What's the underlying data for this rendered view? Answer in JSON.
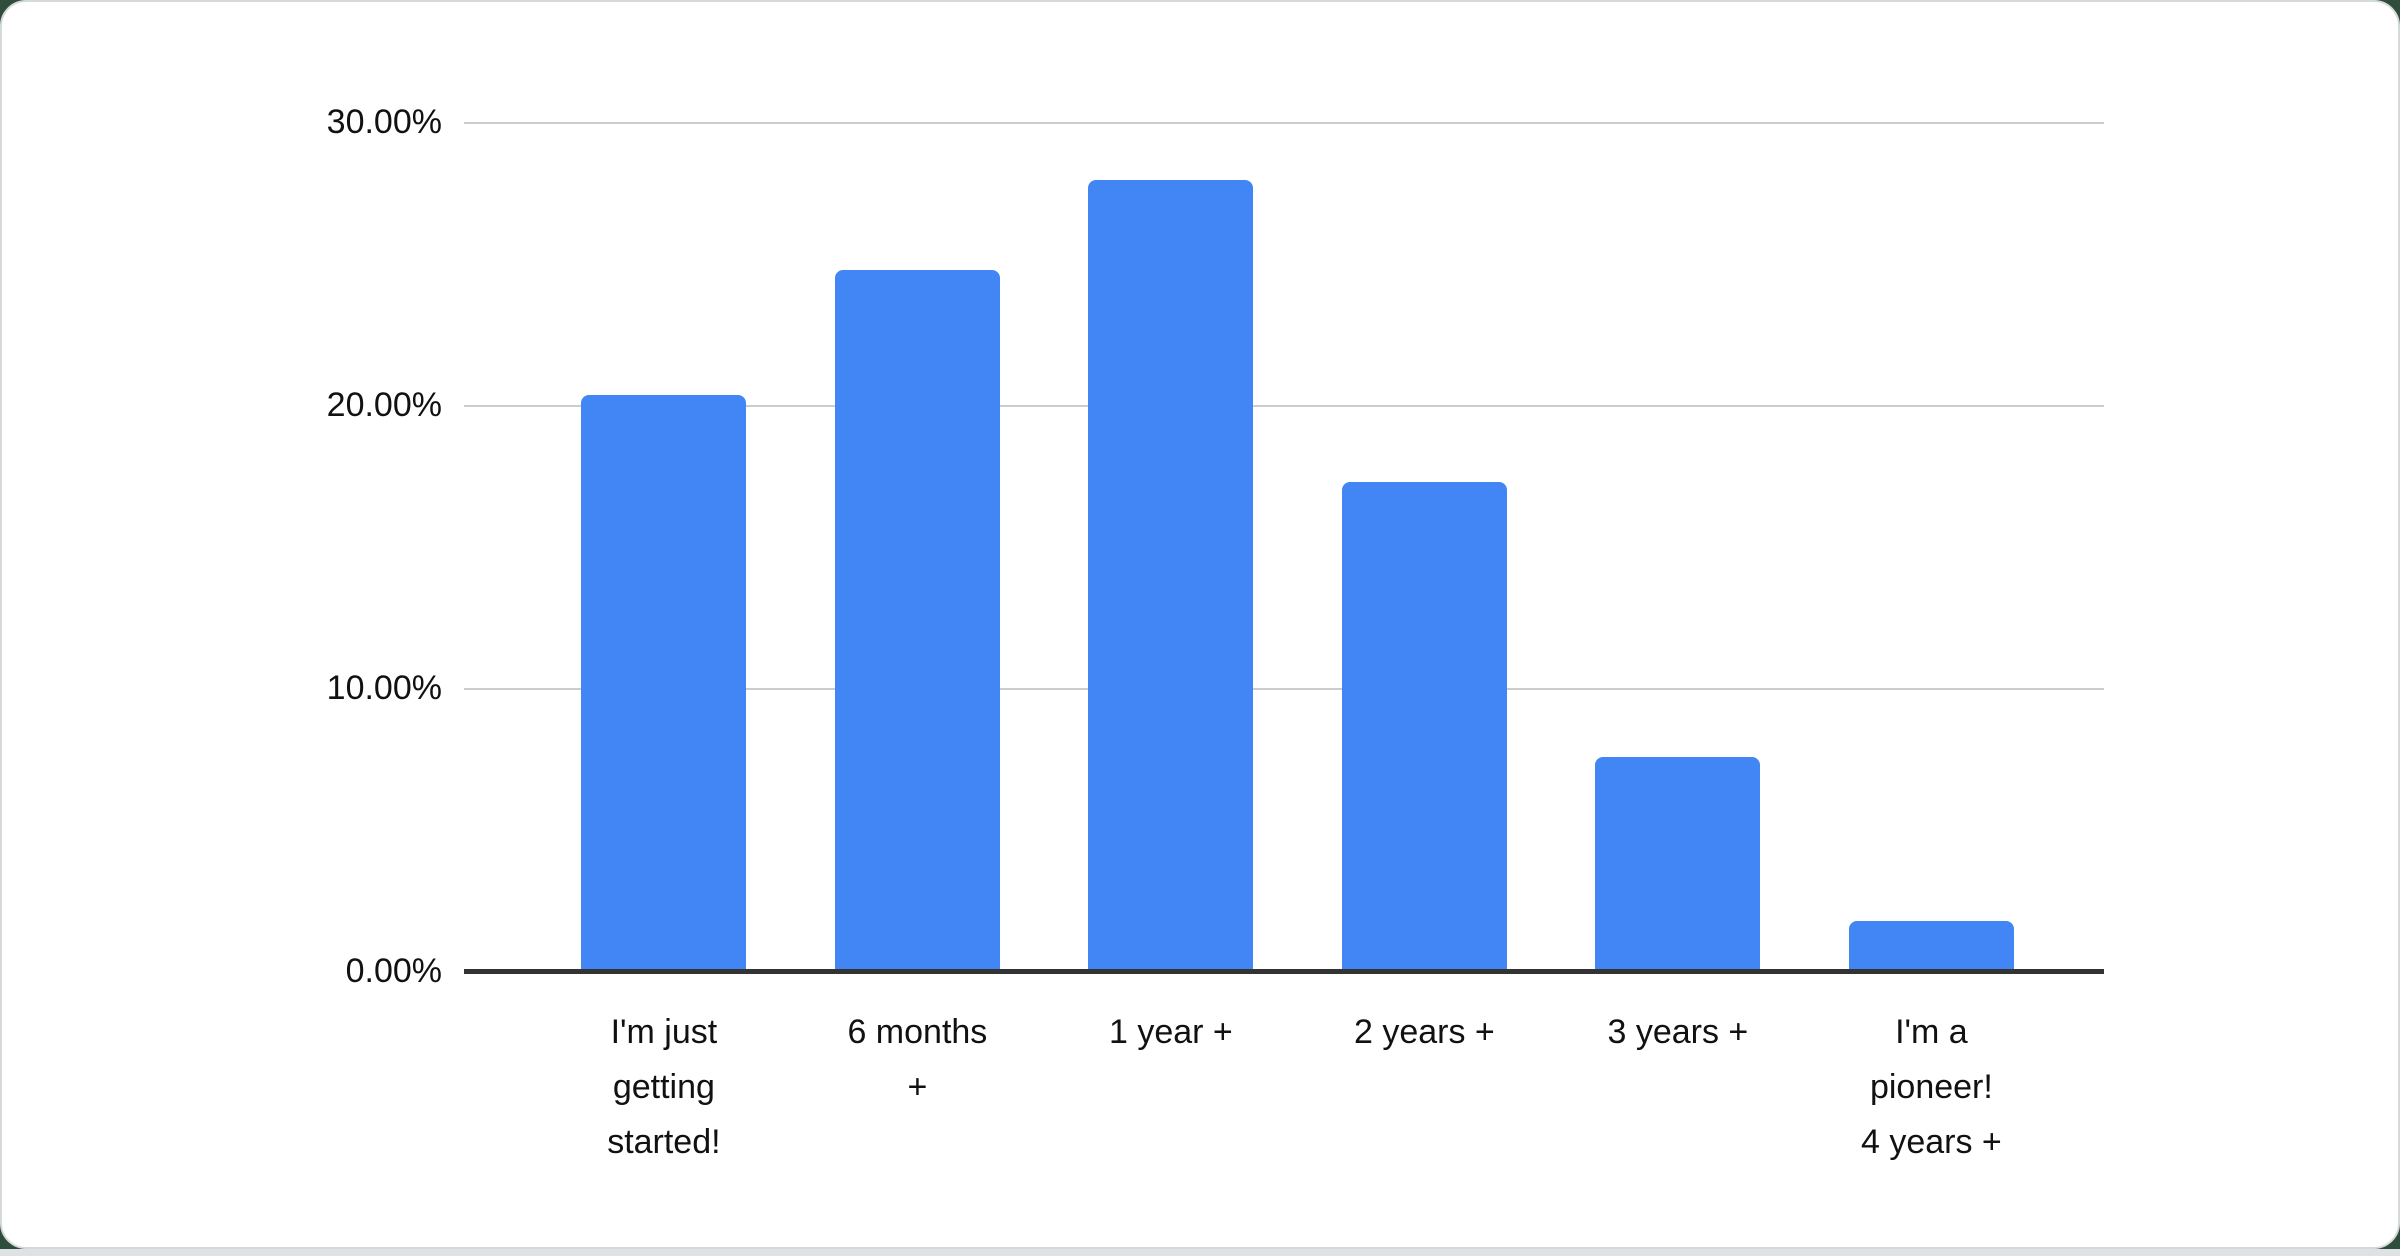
{
  "page": {
    "background_color": "#2f4d3c",
    "card_background": "#ffffff",
    "card_edge_color": "#d6dad6",
    "bottom_strip_color": "#dfe1e4"
  },
  "chart_data": {
    "type": "bar",
    "title": "",
    "xlabel": "",
    "ylabel": "",
    "categories": [
      "I'm just getting started!",
      "6 months +",
      "1 year +",
      "2 years +",
      "3 years +",
      "I'm a pioneer! 4 years +"
    ],
    "values": [
      20.4,
      24.8,
      28.0,
      17.3,
      7.6,
      1.8
    ],
    "value_unit": "%",
    "ylim": [
      0,
      30
    ],
    "ytick_values": [
      30,
      20,
      10,
      0
    ],
    "ytick_labels": [
      "30.00%",
      "20.00%",
      "10.00%",
      "0.00%"
    ],
    "grid": true,
    "legend": "none",
    "bar_color": "#4285f4",
    "gridline_color": "#cccccc",
    "axis_color": "#333333",
    "label_color": "#111111"
  }
}
